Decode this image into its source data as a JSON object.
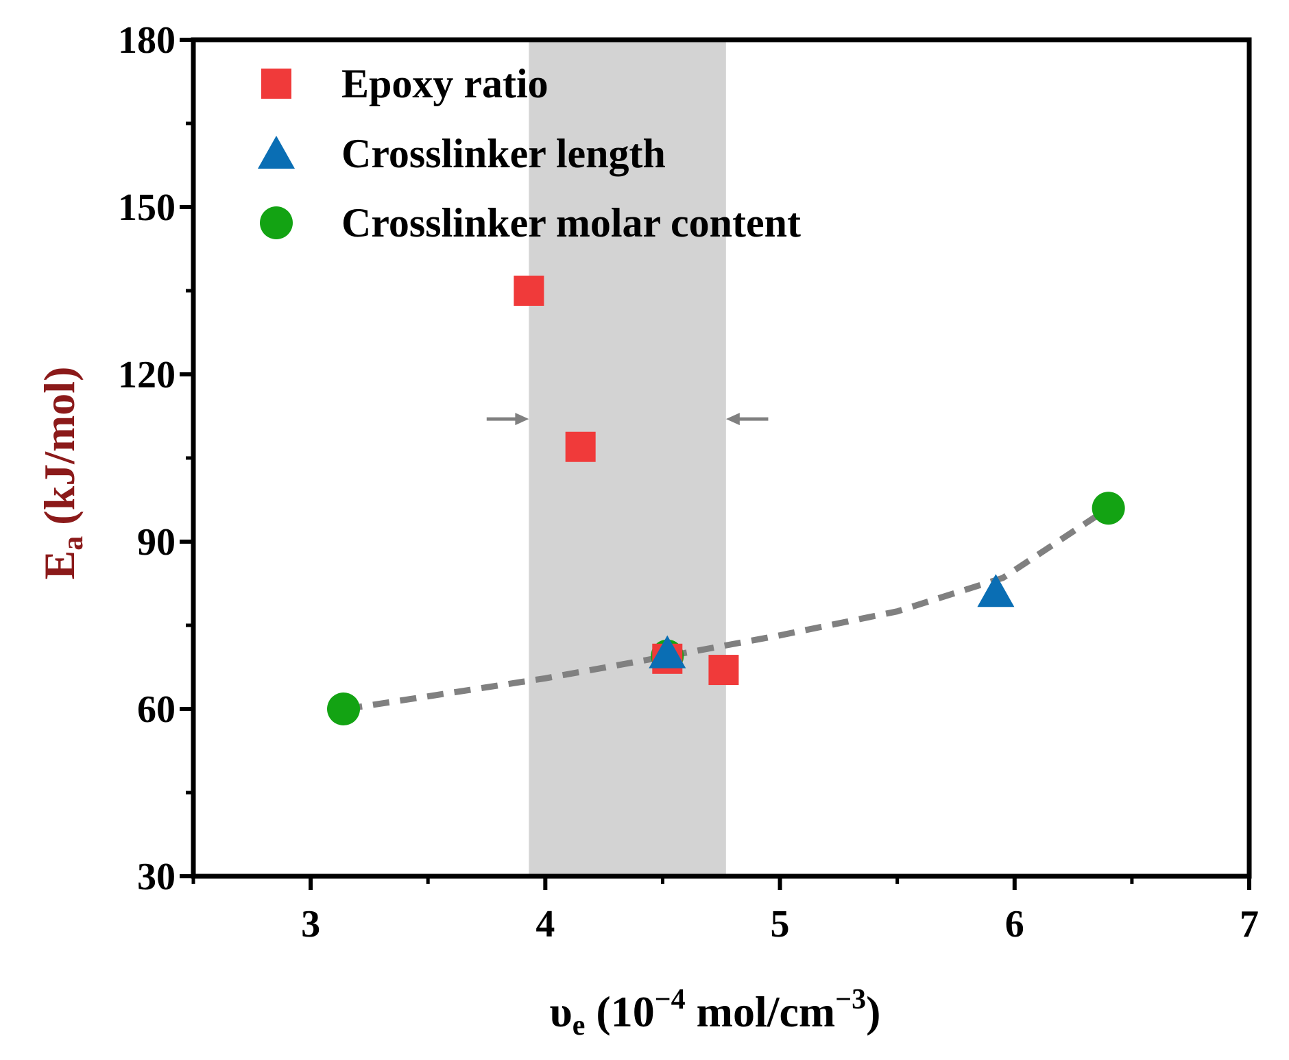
{
  "chart_data": {
    "type": "scatter",
    "title": "",
    "xlabel": {
      "symbol": "υ",
      "subscript": "e",
      "unit_prefix": " (10",
      "unit_exp1": "−4",
      "unit_mid": " mol/cm",
      "unit_exp2": "−3",
      "unit_suffix": ")"
    },
    "ylabel": {
      "symbol": "E",
      "subscript": "a",
      "unit": " (kJ/mol)",
      "color": "#8b1a1a"
    },
    "xlim": [
      2.5,
      7.0
    ],
    "ylim": [
      30,
      180
    ],
    "x_ticks": [
      3,
      4,
      5,
      6,
      7
    ],
    "x_tick_labels": [
      "3",
      "4",
      "5",
      "6",
      "7"
    ],
    "y_ticks": [
      30,
      60,
      90,
      120,
      150,
      180
    ],
    "y_tick_labels": [
      "30",
      "60",
      "90",
      "120",
      "150",
      "180"
    ],
    "grid": false,
    "legend_position": "top-left",
    "shaded_band": {
      "x_start": 3.93,
      "x_end": 4.77,
      "color": "#d3d3d3"
    },
    "arrows": [
      {
        "x_from": 3.75,
        "x_to": 3.93,
        "y": 112
      },
      {
        "x_from": 4.95,
        "x_to": 4.77,
        "y": 112
      }
    ],
    "trend_line": {
      "style": "dashed",
      "color": "#808080",
      "points": [
        [
          3.15,
          60
        ],
        [
          4.0,
          65.5
        ],
        [
          4.5,
          69.3
        ],
        [
          5.0,
          73.2
        ],
        [
          5.5,
          77.5
        ],
        [
          5.95,
          83.5
        ],
        [
          6.4,
          96
        ]
      ]
    },
    "series": [
      {
        "name": "Epoxy ratio",
        "marker": "square",
        "color": "#f03a3a",
        "points": [
          [
            3.93,
            135
          ],
          [
            4.15,
            107
          ],
          [
            4.52,
            69
          ],
          [
            4.76,
            67
          ]
        ]
      },
      {
        "name": "Crosslinker length",
        "marker": "triangle",
        "color": "#0a6eb4",
        "points": [
          [
            4.52,
            70
          ],
          [
            5.92,
            81
          ]
        ]
      },
      {
        "name": "Crosslinker molar content",
        "marker": "circle",
        "color": "#13a313",
        "points": [
          [
            3.14,
            60
          ],
          [
            4.52,
            69.5
          ],
          [
            6.4,
            96
          ]
        ]
      }
    ]
  }
}
